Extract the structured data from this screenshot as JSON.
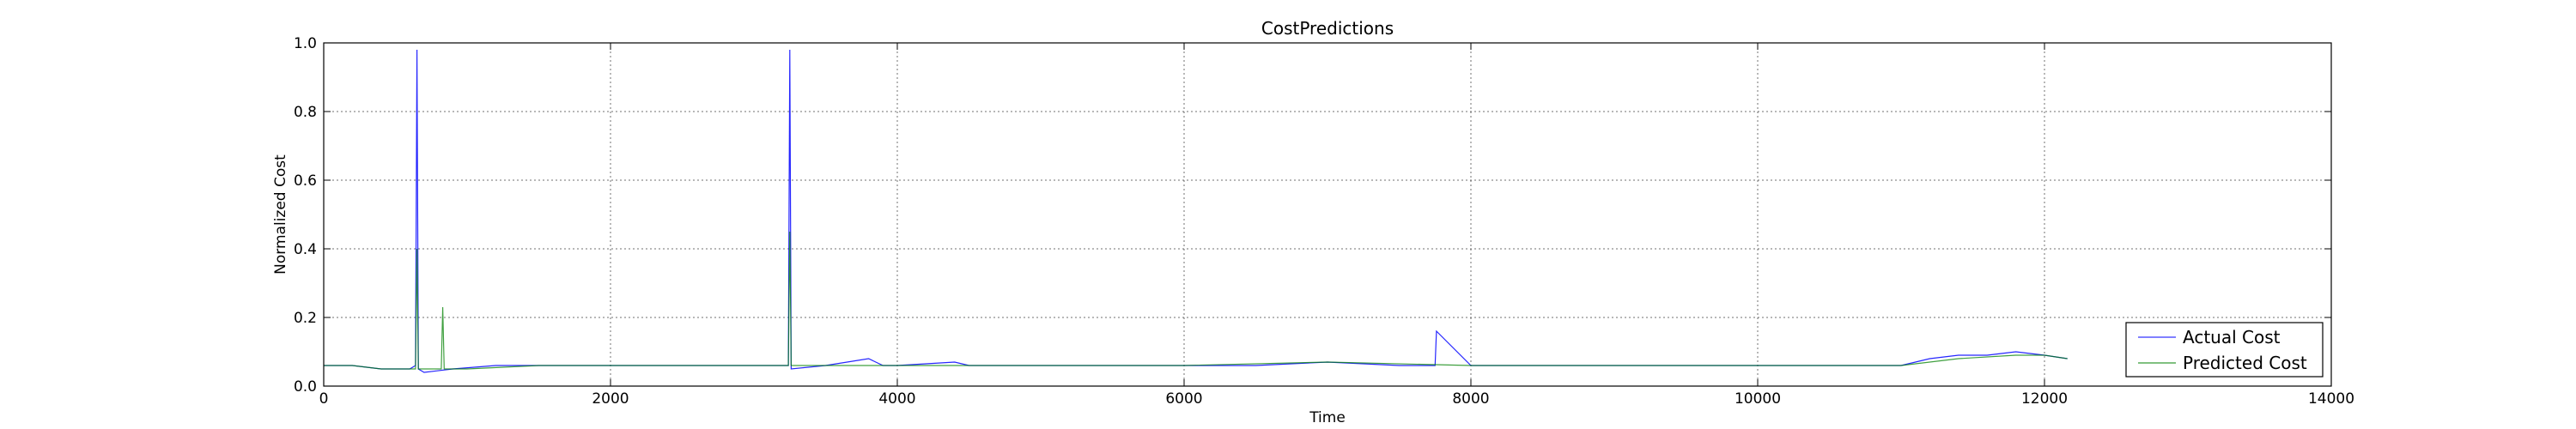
{
  "chart_data": {
    "type": "line",
    "title": "CostPredictions",
    "xlabel": "Time",
    "ylabel": "Normalized Cost",
    "xlim": [
      0,
      14000
    ],
    "ylim": [
      0.0,
      1.0
    ],
    "x_ticks": [
      0,
      2000,
      4000,
      6000,
      8000,
      10000,
      12000,
      14000
    ],
    "x_tick_labels": [
      "0",
      "2000",
      "4000",
      "6000",
      "8000",
      "10000",
      "12000",
      "14000"
    ],
    "y_ticks": [
      0.0,
      0.2,
      0.4,
      0.6,
      0.8,
      1.0
    ],
    "y_tick_labels": [
      "0.0",
      "0.2",
      "0.4",
      "0.6",
      "0.8",
      "1.0"
    ],
    "grid": true,
    "legend_position": "bottom-right",
    "series": [
      {
        "name": "Actual Cost",
        "color": "#0000ff",
        "x": [
          0,
          200,
          400,
          600,
          640,
          650,
          660,
          700,
          900,
          1200,
          1500,
          2000,
          2500,
          3000,
          3240,
          3250,
          3260,
          3500,
          3800,
          3900,
          4000,
          4400,
          4500,
          5000,
          5500,
          6000,
          6500,
          7000,
          7500,
          7750,
          7760,
          8000,
          8500,
          9000,
          9500,
          10000,
          10500,
          11000,
          11200,
          11400,
          11600,
          11800,
          12000,
          12160
        ],
        "values": [
          0.06,
          0.06,
          0.05,
          0.05,
          0.06,
          0.98,
          0.05,
          0.04,
          0.05,
          0.06,
          0.06,
          0.06,
          0.06,
          0.06,
          0.06,
          0.98,
          0.05,
          0.06,
          0.08,
          0.06,
          0.06,
          0.07,
          0.06,
          0.06,
          0.06,
          0.06,
          0.06,
          0.07,
          0.06,
          0.06,
          0.16,
          0.06,
          0.06,
          0.06,
          0.06,
          0.06,
          0.06,
          0.06,
          0.08,
          0.09,
          0.09,
          0.1,
          0.09,
          0.08
        ]
      },
      {
        "name": "Predicted Cost",
        "color": "#008000",
        "x": [
          0,
          200,
          400,
          590,
          600,
          610,
          640,
          650,
          660,
          820,
          830,
          840,
          1000,
          1500,
          2000,
          2500,
          3000,
          3240,
          3250,
          3260,
          3500,
          4000,
          5000,
          6000,
          7000,
          8000,
          9000,
          10000,
          11000,
          11400,
          11800,
          12000,
          12160
        ],
        "values": [
          0.06,
          0.06,
          0.05,
          0.05,
          0.05,
          0.05,
          0.05,
          0.4,
          0.05,
          0.05,
          0.23,
          0.05,
          0.05,
          0.06,
          0.06,
          0.06,
          0.06,
          0.06,
          0.45,
          0.06,
          0.06,
          0.06,
          0.06,
          0.06,
          0.07,
          0.06,
          0.06,
          0.06,
          0.06,
          0.08,
          0.09,
          0.09,
          0.08
        ]
      }
    ]
  }
}
